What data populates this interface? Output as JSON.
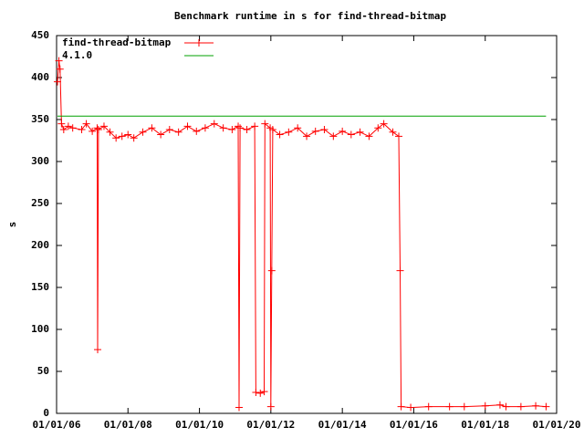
{
  "chart_data": {
    "type": "line",
    "title": "Benchmark runtime in s for find-thread-bitmap",
    "y_label": "s",
    "xlim": [
      "2006-01-01",
      "2020-01-01"
    ],
    "xticks": [
      {
        "value": "2006-01-01",
        "label": "01/01/06"
      },
      {
        "value": "2008-01-01",
        "label": "01/01/08"
      },
      {
        "value": "2010-01-01",
        "label": "01/01/10"
      },
      {
        "value": "2012-01-01",
        "label": "01/01/12"
      },
      {
        "value": "2014-01-01",
        "label": "01/01/14"
      },
      {
        "value": "2016-01-01",
        "label": "01/01/16"
      },
      {
        "value": "2018-01-01",
        "label": "01/01/18"
      },
      {
        "value": "2020-01-01",
        "label": "01/01/20"
      }
    ],
    "ylim": [
      0,
      450
    ],
    "yticks": [
      0,
      50,
      100,
      150,
      200,
      250,
      300,
      350,
      400,
      450
    ],
    "legend": "top-left",
    "series": [
      {
        "name": "find-thread-bitmap",
        "color": "#ff0000",
        "markers": true,
        "x": [
          "2006-01-10",
          "2006-01-25",
          "2006-02-05",
          "2006-02-20",
          "2006-03-15",
          "2006-05-01",
          "2006-06-15",
          "2006-09-15",
          "2006-11-01",
          "2007-01-01",
          "2007-02-20",
          "2007-02-25",
          "2007-03-05",
          "2007-05-01",
          "2007-07-01",
          "2007-09-01",
          "2007-11-01",
          "2008-01-01",
          "2008-03-01",
          "2008-06-01",
          "2008-09-01",
          "2008-12-01",
          "2009-03-01",
          "2009-06-01",
          "2009-09-01",
          "2009-12-01",
          "2010-03-01",
          "2010-06-01",
          "2010-09-01",
          "2010-12-01",
          "2011-02-01",
          "2011-02-10",
          "2011-02-20",
          "2011-05-01",
          "2011-07-20",
          "2011-08-01",
          "2011-09-15",
          "2011-10-25",
          "2011-11-01",
          "2011-12-25",
          "2012-01-01",
          "2012-01-10",
          "2012-01-20",
          "2012-04-01",
          "2012-07-01",
          "2012-10-01",
          "2013-01-01",
          "2013-04-01",
          "2013-07-01",
          "2013-10-01",
          "2014-01-01",
          "2014-04-01",
          "2014-07-01",
          "2014-10-01",
          "2015-01-01",
          "2015-03-01",
          "2015-06-01",
          "2015-08-01",
          "2015-08-15",
          "2015-08-25",
          "2015-12-01",
          "2016-06-01",
          "2017-01-01",
          "2017-06-01",
          "2018-01-01",
          "2018-06-01",
          "2018-08-01",
          "2019-01-01",
          "2019-06-01",
          "2019-09-15"
        ],
        "values": [
          395,
          420,
          410,
          345,
          338,
          342,
          340,
          338,
          345,
          336,
          340,
          76,
          338,
          342,
          335,
          328,
          330,
          332,
          328,
          335,
          340,
          332,
          338,
          335,
          342,
          336,
          340,
          345,
          340,
          338,
          342,
          7,
          340,
          338,
          342,
          25,
          24,
          26,
          345,
          340,
          8,
          170,
          338,
          332,
          335,
          340,
          330,
          336,
          338,
          330,
          336,
          332,
          335,
          330,
          340,
          345,
          335,
          330,
          170,
          8,
          7,
          8,
          8,
          8,
          9,
          10,
          8,
          8,
          9,
          8
        ]
      },
      {
        "name": "4.1.0",
        "color": "#00a000",
        "markers": false,
        "x": [
          "2006-01-10",
          "2019-09-15"
        ],
        "values": [
          354,
          354
        ]
      }
    ]
  }
}
